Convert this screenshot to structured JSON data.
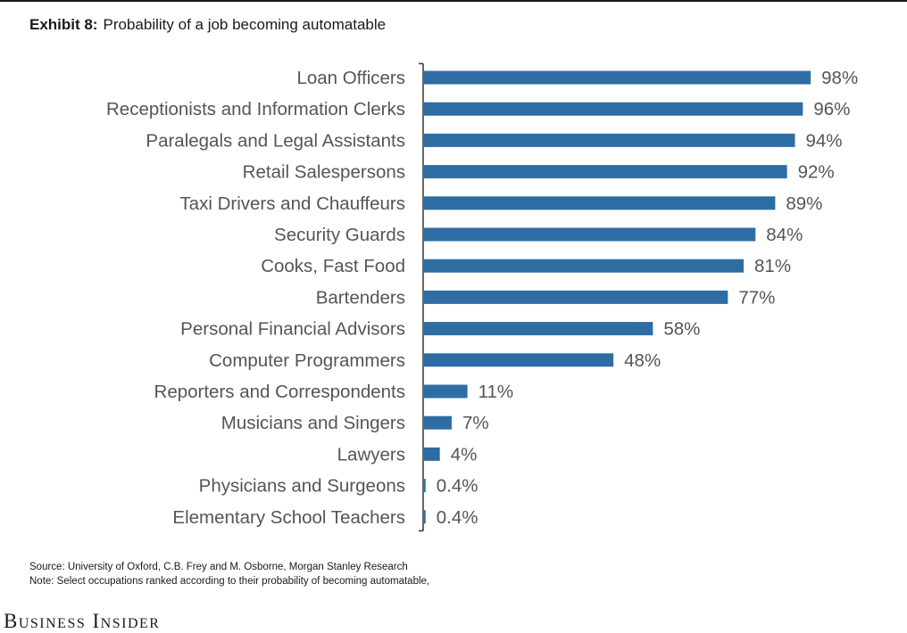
{
  "header": {
    "exhibit": "Exhibit 8:",
    "title": "Probability of a job becoming automatable"
  },
  "chart_data": {
    "type": "bar",
    "orientation": "horizontal",
    "categories": [
      "Loan Officers",
      "Receptionists and Information Clerks",
      "Paralegals and Legal Assistants",
      "Retail Salespersons",
      "Taxi Drivers and Chauffeurs",
      "Security Guards",
      "Cooks, Fast Food",
      "Bartenders",
      "Personal Financial Advisors",
      "Computer Programmers",
      "Reporters and Correspondents",
      "Musicians and Singers",
      "Lawyers",
      "Physicians and Surgeons",
      "Elementary School Teachers"
    ],
    "values": [
      98,
      96,
      94,
      92,
      89,
      84,
      81,
      77,
      58,
      48,
      11,
      7,
      4,
      0.4,
      0.4
    ],
    "value_labels": [
      "98%",
      "96%",
      "94%",
      "92%",
      "89%",
      "84%",
      "81%",
      "77%",
      "58%",
      "48%",
      "11%",
      "7%",
      "4%",
      "0.4%",
      "0.4%"
    ],
    "xlim": [
      0,
      100
    ],
    "unit": "%",
    "bar_color": "#2e6da4",
    "grid": false,
    "legend": "none"
  },
  "footer": {
    "source": "Source: University of Oxford, C.B. Frey and M. Osborne, Morgan Stanley Research",
    "note": "Note: Select occupations ranked according to their probability of becoming automatable,",
    "brand": "Business Insider"
  }
}
